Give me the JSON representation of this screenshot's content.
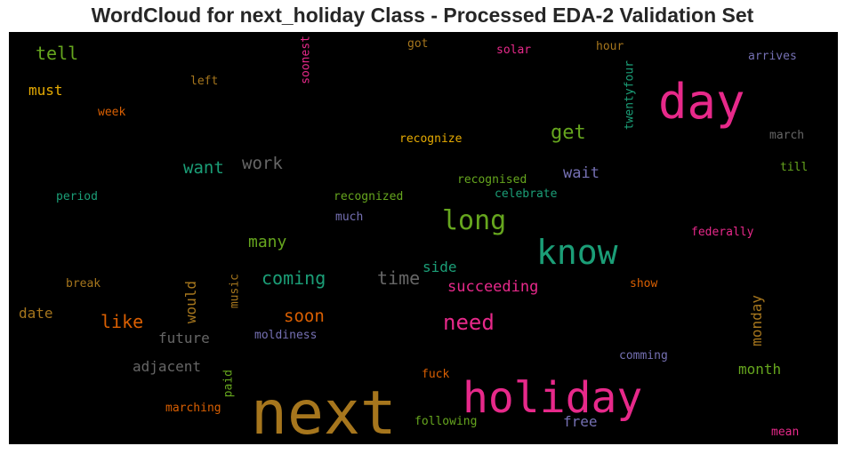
{
  "title": "WordCloud for next_holiday Class - Processed EDA-2 Validation Set",
  "chart_data": {
    "type": "wordcloud",
    "background": "#000000",
    "words": [
      {
        "text": "next",
        "color": "#a6761d"
      },
      {
        "text": "holiday",
        "color": "#e7298a"
      },
      {
        "text": "day",
        "color": "#e7298a"
      },
      {
        "text": "know",
        "color": "#1b9e77"
      },
      {
        "text": "long",
        "color": "#66a61e"
      },
      {
        "text": "need",
        "color": "#e7298a"
      },
      {
        "text": "get",
        "color": "#66a61e"
      },
      {
        "text": "want",
        "color": "#1b9e77"
      },
      {
        "text": "work",
        "color": "#666666"
      },
      {
        "text": "like",
        "color": "#d95f02"
      },
      {
        "text": "time",
        "color": "#666666"
      },
      {
        "text": "coming",
        "color": "#1b9e77"
      },
      {
        "text": "soon",
        "color": "#d95f02"
      },
      {
        "text": "many",
        "color": "#66a61e"
      },
      {
        "text": "tell",
        "color": "#66a61e"
      },
      {
        "text": "must",
        "color": "#e6ab02"
      },
      {
        "text": "wait",
        "color": "#7570b3"
      },
      {
        "text": "succeeding",
        "color": "#e7298a"
      },
      {
        "text": "side",
        "color": "#1b9e77"
      },
      {
        "text": "would",
        "color": "#a6761d"
      },
      {
        "text": "future",
        "color": "#666666"
      },
      {
        "text": "adjacent",
        "color": "#666666"
      },
      {
        "text": "date",
        "color": "#a6761d"
      },
      {
        "text": "monday",
        "color": "#a6761d"
      },
      {
        "text": "month",
        "color": "#66a61e"
      },
      {
        "text": "free",
        "color": "#7570b3"
      },
      {
        "text": "soonest",
        "color": "#e7298a"
      },
      {
        "text": "twentyfour",
        "color": "#1b9e77"
      },
      {
        "text": "got",
        "color": "#a6761d"
      },
      {
        "text": "solar",
        "color": "#e7298a"
      },
      {
        "text": "hour",
        "color": "#a6761d"
      },
      {
        "text": "arrives",
        "color": "#7570b3"
      },
      {
        "text": "left",
        "color": "#a6761d"
      },
      {
        "text": "week",
        "color": "#d95f02"
      },
      {
        "text": "recognize",
        "color": "#e6ab02"
      },
      {
        "text": "march",
        "color": "#666666"
      },
      {
        "text": "till",
        "color": "#66a61e"
      },
      {
        "text": "period",
        "color": "#1b9e77"
      },
      {
        "text": "recognized",
        "color": "#66a61e"
      },
      {
        "text": "recognised",
        "color": "#66a61e"
      },
      {
        "text": "celebrate",
        "color": "#1b9e77"
      },
      {
        "text": "much",
        "color": "#7570b3"
      },
      {
        "text": "federally",
        "color": "#e7298a"
      },
      {
        "text": "break",
        "color": "#a6761d"
      },
      {
        "text": "music",
        "color": "#a6761d"
      },
      {
        "text": "show",
        "color": "#d95f02"
      },
      {
        "text": "moldiness",
        "color": "#7570b3"
      },
      {
        "text": "comming",
        "color": "#7570b3"
      },
      {
        "text": "fuck",
        "color": "#d95f02"
      },
      {
        "text": "paid",
        "color": "#66a61e"
      },
      {
        "text": "marching",
        "color": "#d95f02"
      },
      {
        "text": "following",
        "color": "#66a61e"
      },
      {
        "text": "mean",
        "color": "#e7298a"
      }
    ]
  }
}
